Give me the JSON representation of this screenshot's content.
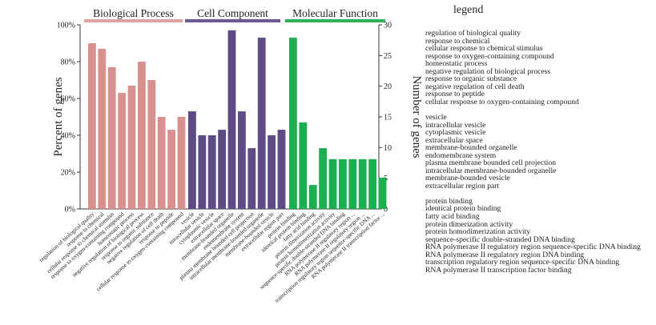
{
  "chart_data": {
    "type": "bar",
    "y_left": {
      "label": "Percent of genes",
      "ticks": [
        "0%",
        "20%",
        "40%",
        "60%",
        "80%",
        "100%"
      ],
      "range": [
        0,
        100
      ]
    },
    "y_right": {
      "label": "Number of genes",
      "ticks": [
        "0",
        "5",
        "10",
        "15",
        "20",
        "25",
        "30"
      ],
      "range": [
        0,
        30
      ]
    },
    "groups": [
      {
        "name": "Biological Process",
        "color": "#d99190",
        "header_color": "#e0a2a0",
        "categories": [
          "regulation of biological quality",
          "response to chemical",
          "cellular response to chemical stimulus",
          "response to oxygen-containing compound",
          "homeostatic process",
          "negative regulation of biological process",
          "response to organic substance",
          "negative regulation of cell death",
          "response to peptide",
          "cellular response to oxygen-containing compound"
        ],
        "values": [
          90,
          87,
          77,
          63,
          67,
          80,
          70,
          50,
          43,
          50
        ]
      },
      {
        "name": "Cell Component",
        "color": "#5e4a85",
        "header_color": "#6a5a90",
        "categories": [
          "vesicle",
          "intracellular vesicle",
          "cytoplasmic vesicle",
          "extracellular space",
          "membrane-bounded organelle",
          "endomembrane system",
          "plasma membrane bounded cell projection",
          "intracellular membrane-bounded organelle",
          "membrane-bounded vesicle",
          "extracellular region part"
        ],
        "values": [
          53,
          40,
          40,
          43,
          97,
          53,
          33,
          93,
          40,
          43
        ]
      },
      {
        "name": "Molecular Function",
        "color": "#1bb04f",
        "header_color": "#2fb25a",
        "categories": [
          "protein binding",
          "identical protein binding",
          "fatty acid binding",
          "protein dimerization activity",
          "protein homodimerization activity",
          "sequence-specific double-stranded DNA binding",
          "RNA polymerase II regulatory region sequence-specific DNA binding",
          "RNA polymerase II regulatory region DNA binding",
          "transcription regulatory region sequence-specific DNA binding",
          "RNA polymerase II transcription factor binding"
        ],
        "tick_labels": [
          "protein binding",
          "identical protein binding",
          "fatty acid binding",
          "protein dimerization activity",
          "protein homodimerization activity",
          "sequence-specific double-stranded DNA binding",
          "RNA polymerase II regulatory region ...",
          "RNA polymerase II regulatory region ...",
          "transcription regulatory region sequence-specific DNA ...",
          "RNA polymerase II transcription factor ..."
        ],
        "values": [
          93,
          47,
          13,
          33,
          27,
          27,
          27,
          27,
          27,
          17
        ]
      }
    ],
    "grid": false
  },
  "legend": {
    "title": "legend"
  }
}
